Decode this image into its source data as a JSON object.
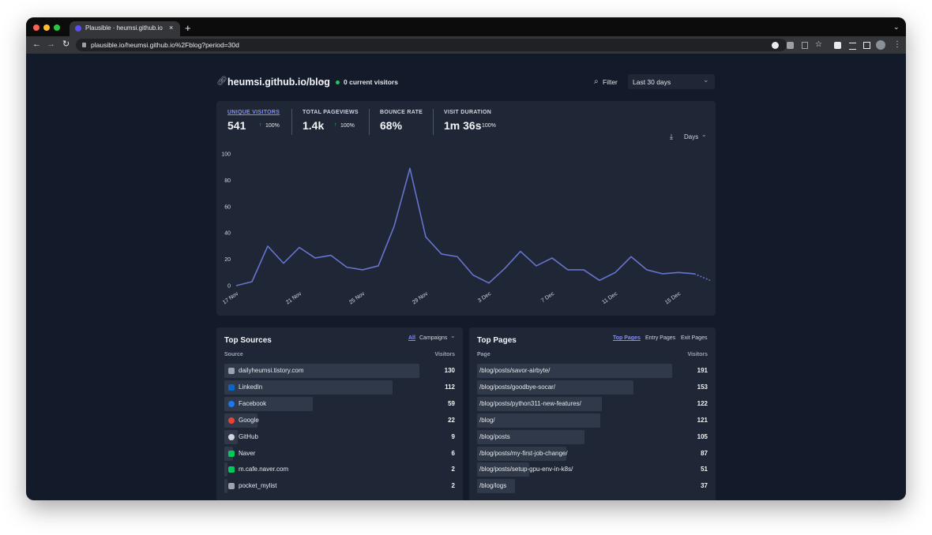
{
  "browser": {
    "tab_title": "Plausible · heumsi.github.io/bl",
    "url": "plausible.io/heumsi.github.io%2Fblog?period=30d"
  },
  "header": {
    "site": "heumsi.github.io/blog",
    "current_visitors": "0 current visitors",
    "filter": "Filter",
    "period": "Last 30 days"
  },
  "stats": [
    {
      "label": "UNIQUE VISITORS",
      "value": "541",
      "change": "100%"
    },
    {
      "label": "TOTAL PAGEVIEWS",
      "value": "1.4k",
      "change": "100%"
    },
    {
      "label": "BOUNCE RATE",
      "value": "68%"
    },
    {
      "label": "VISIT DURATION",
      "value": "1m 36s",
      "change": "100%"
    }
  ],
  "interval": "Days",
  "chart_data": {
    "type": "line",
    "categories": [
      "17 Nov",
      null,
      null,
      null,
      "21 Nov",
      null,
      null,
      null,
      "25 Nov",
      null,
      null,
      null,
      "29 Nov",
      null,
      null,
      null,
      "3 Dec",
      null,
      null,
      null,
      "7 Dec",
      null,
      null,
      null,
      "11 Dec",
      null,
      null,
      null,
      "15 Dec",
      null,
      null
    ],
    "values": [
      0,
      3,
      30,
      17,
      29,
      21,
      23,
      14,
      12,
      15,
      45,
      89,
      37,
      24,
      22,
      8,
      2,
      13,
      26,
      15,
      21,
      12,
      12,
      4,
      10,
      22,
      12,
      9,
      10,
      9,
      4
    ],
    "color": "#6574cd",
    "dashed_last_segment": true,
    "ylim": [
      0,
      100
    ],
    "yticks": [
      0,
      20,
      40,
      60,
      80,
      100
    ]
  },
  "sources": {
    "title": "Top Sources",
    "tabs": [
      "All",
      "Campaigns"
    ],
    "columns": [
      "Source",
      "Visitors"
    ],
    "rows": [
      {
        "label": "dailyheumsi.tistory.com",
        "visitors": 130
      },
      {
        "label": "LinkedIn",
        "visitors": 112
      },
      {
        "label": "Facebook",
        "visitors": 59
      },
      {
        "label": "Google",
        "visitors": 22
      },
      {
        "label": "GitHub",
        "visitors": 9
      },
      {
        "label": "Naver",
        "visitors": 6
      },
      {
        "label": "m.cafe.naver.com",
        "visitors": 2
      },
      {
        "label": "pocket_mylist",
        "visitors": 2
      }
    ]
  },
  "pages": {
    "title": "Top Pages",
    "tabs": [
      "Top Pages",
      "Entry Pages",
      "Exit Pages"
    ],
    "columns": [
      "Page",
      "Visitors"
    ],
    "rows": [
      {
        "label": "/blog/posts/savor-airbyte/",
        "visitors": 191
      },
      {
        "label": "/blog/posts/goodbye-socar/",
        "visitors": 153
      },
      {
        "label": "/blog/posts/python311-new-features/",
        "visitors": 122
      },
      {
        "label": "/blog/",
        "visitors": 121
      },
      {
        "label": "/blog/posts",
        "visitors": 105
      },
      {
        "label": "/blog/posts/my-first-job-change/",
        "visitors": 87
      },
      {
        "label": "/blog/posts/setup-gpu-env-in-k8s/",
        "visitors": 51
      },
      {
        "label": "/blog/logs",
        "visitors": 37
      }
    ]
  }
}
